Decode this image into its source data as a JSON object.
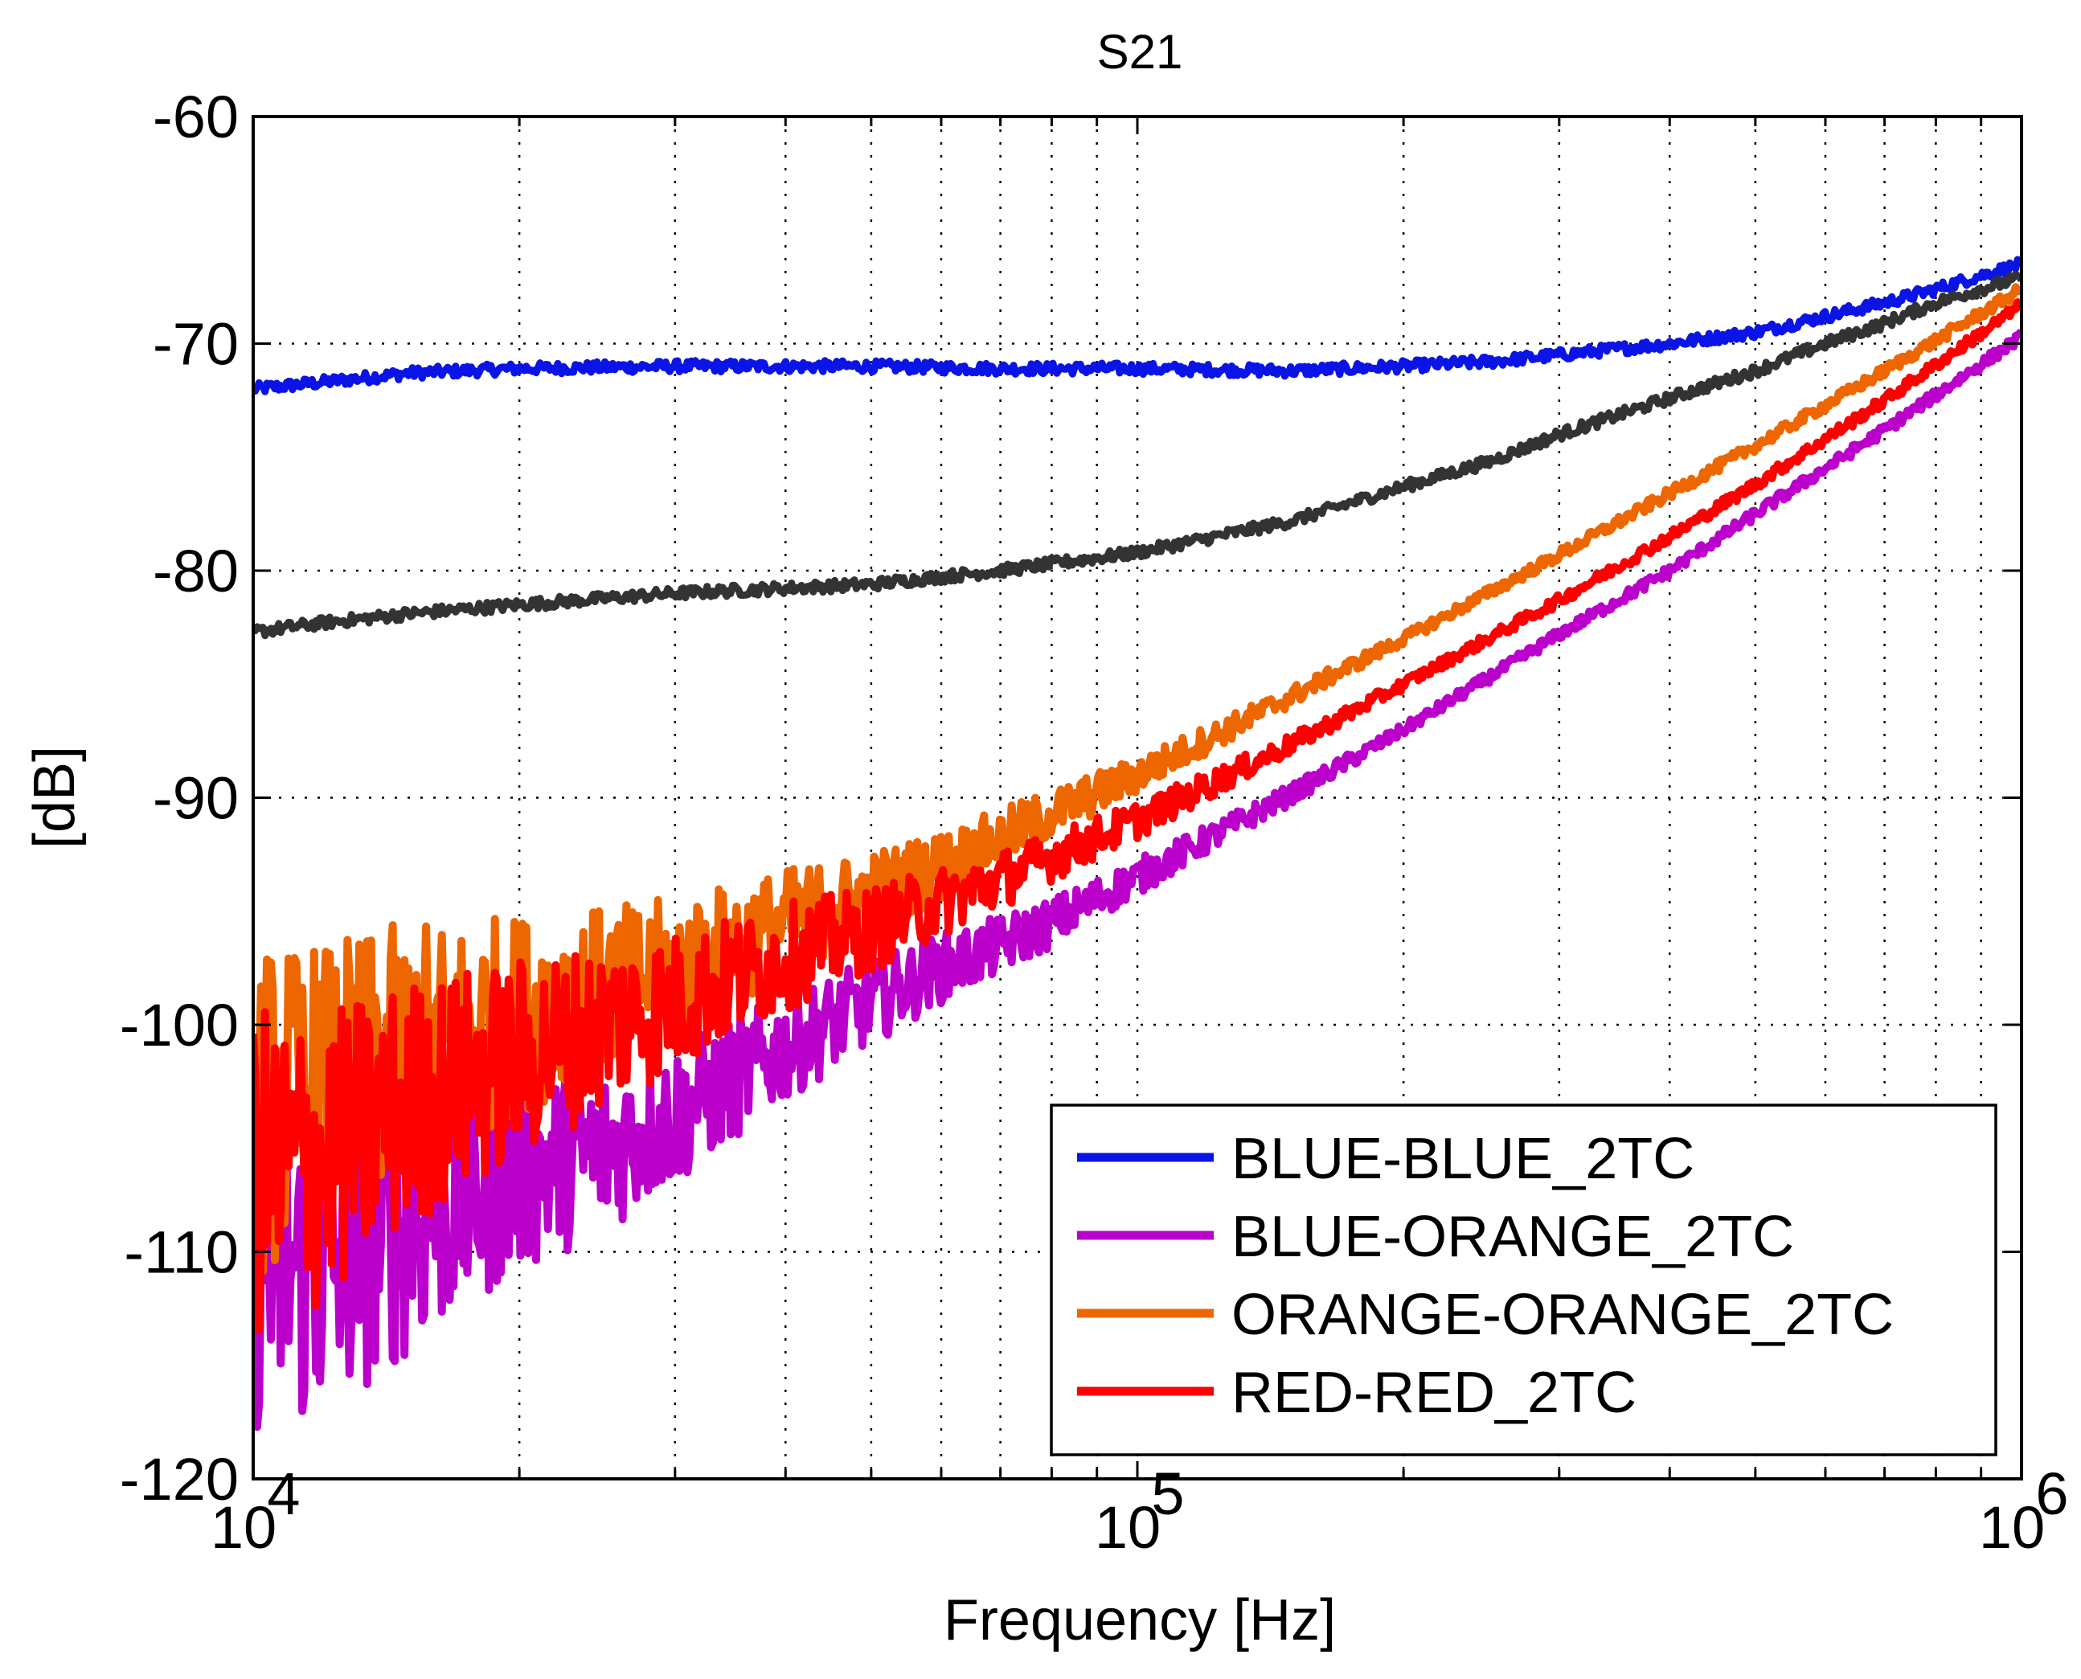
{
  "chart_data": {
    "type": "line",
    "title": "S21",
    "xlabel": "Frequency [Hz]",
    "ylabel": "[dB]",
    "xscale": "log",
    "xlim": [
      10000,
      1000000
    ],
    "ylim": [
      -120,
      -60
    ],
    "xticks": [
      {
        "value": 10000,
        "base": "10",
        "exp": "4"
      },
      {
        "value": 100000,
        "base": "10",
        "exp": "5"
      },
      {
        "value": 1000000,
        "base": "10",
        "exp": "6"
      }
    ],
    "yticks": [
      {
        "value": -60,
        "label": "-60"
      },
      {
        "value": -70,
        "label": "-70"
      },
      {
        "value": -80,
        "label": "-80"
      },
      {
        "value": -90,
        "label": "-90"
      },
      {
        "value": -100,
        "label": "-100"
      },
      {
        "value": -110,
        "label": "-110"
      },
      {
        "value": -120,
        "label": "-120"
      }
    ],
    "grid": true,
    "legend_position": "bottom-right",
    "series": [
      {
        "name": "BLUE-BLUE_2TC",
        "color": "#0a14e6",
        "in_legend": true,
        "x": [
          10000,
          12000,
          15000,
          20000,
          30000,
          50000,
          70000,
          100000,
          150000,
          200000,
          250000,
          300000,
          400000,
          500000,
          600000,
          700000,
          800000,
          900000,
          1000000
        ],
        "y": [
          -72.0,
          -71.7,
          -71.3,
          -71.1,
          -71.0,
          -71.0,
          -71.1,
          -71.1,
          -71.2,
          -71.0,
          -70.8,
          -70.5,
          -70.0,
          -69.5,
          -68.8,
          -68.2,
          -67.6,
          -67.0,
          -66.5
        ]
      },
      {
        "name": "",
        "color": "#333333",
        "in_legend": false,
        "x": [
          10000,
          12000,
          15000,
          20000,
          30000,
          50000,
          70000,
          100000,
          150000,
          200000,
          250000,
          300000,
          400000,
          500000,
          600000,
          700000,
          800000,
          900000,
          1000000
        ],
        "y": [
          -82.7,
          -82.3,
          -81.9,
          -81.5,
          -81.0,
          -80.6,
          -80.0,
          -79.2,
          -77.8,
          -76.3,
          -75.2,
          -74.0,
          -72.4,
          -71.2,
          -70.0,
          -69.1,
          -68.2,
          -67.6,
          -67.1
        ]
      },
      {
        "name": "BLUE-ORANGE_2TC",
        "color": "#bb00cc",
        "in_legend": true,
        "x": [
          10000,
          12000,
          15000,
          20000,
          25000,
          30000,
          40000,
          50000,
          60000,
          70000,
          80000,
          100000,
          150000,
          200000,
          300000,
          400000,
          500000,
          700000,
          1000000
        ],
        "y": [
          -110.5,
          -111.0,
          -109.0,
          -106.5,
          -105.5,
          -104.0,
          -101.0,
          -99.0,
          -97.5,
          -96.5,
          -95.5,
          -93.5,
          -89.8,
          -87.0,
          -82.8,
          -80.0,
          -77.5,
          -73.8,
          -69.7
        ]
      },
      {
        "name": "ORANGE-ORANGE_2TC",
        "color": "#ee6600",
        "in_legend": true,
        "x": [
          10000,
          12000,
          15000,
          20000,
          25000,
          30000,
          40000,
          50000,
          60000,
          70000,
          80000,
          100000,
          150000,
          200000,
          300000,
          400000,
          500000,
          700000,
          1000000
        ],
        "y": [
          -104.0,
          -103.0,
          -101.0,
          -99.5,
          -98.5,
          -97.5,
          -95.5,
          -94.2,
          -93.0,
          -91.8,
          -90.7,
          -89.0,
          -85.5,
          -83.0,
          -79.3,
          -76.6,
          -74.5,
          -71.2,
          -67.6
        ]
      },
      {
        "name": "RED-RED_2TC",
        "color": "#ff0000",
        "in_legend": true,
        "x": [
          10000,
          12000,
          15000,
          20000,
          25000,
          30000,
          40000,
          50000,
          60000,
          70000,
          80000,
          100000,
          150000,
          200000,
          300000,
          400000,
          500000,
          700000,
          1000000
        ],
        "y": [
          -106.5,
          -106.0,
          -103.5,
          -101.5,
          -100.0,
          -99.0,
          -97.0,
          -95.8,
          -94.6,
          -93.6,
          -92.6,
          -91.0,
          -87.6,
          -85.0,
          -81.3,
          -78.5,
          -76.2,
          -72.5,
          -68.3
        ]
      }
    ]
  }
}
